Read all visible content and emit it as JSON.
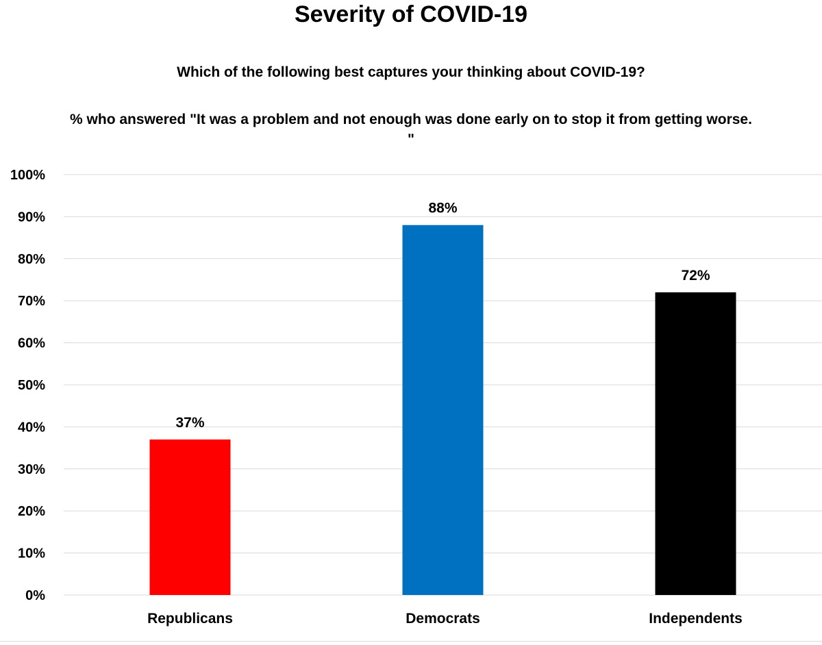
{
  "chart_data": {
    "type": "bar",
    "title": "Severity of COVID-19",
    "subtitle": "Which of the following best captures your thinking about COVID-19?",
    "subtitle2": "% who answered \"It was a problem and not enough was done early on to stop it from getting worse. \"",
    "categories": [
      "Republicans",
      "Democrats",
      "Independents"
    ],
    "values": [
      37,
      88,
      72
    ],
    "data_labels": [
      "37%",
      "88%",
      "72%"
    ],
    "colors": [
      "#ff0000",
      "#0070c0",
      "#000000"
    ],
    "ylim": [
      0,
      100
    ],
    "yticks": [
      "0%",
      "10%",
      "20%",
      "30%",
      "40%",
      "50%",
      "60%",
      "70%",
      "80%",
      "90%",
      "100%"
    ],
    "grid": true,
    "legend": "none"
  }
}
